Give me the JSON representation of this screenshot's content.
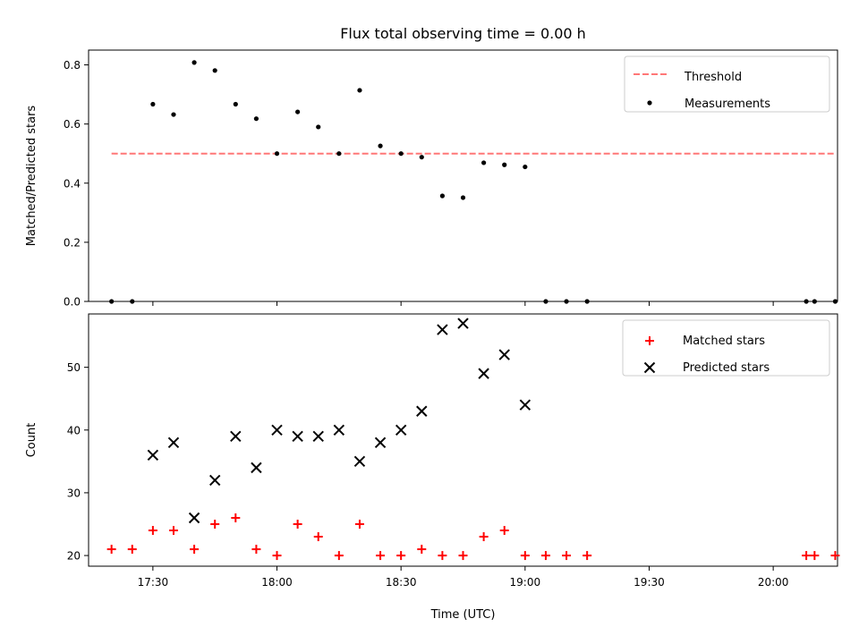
{
  "chart_data": [
    {
      "type": "scatter",
      "title": "Flux total observing time = 0.00 h",
      "xlabel": "",
      "ylabel": "Matched/Predicted stars",
      "ylim": [
        0,
        0.85
      ],
      "yticks": [
        0.0,
        0.2,
        0.4,
        0.6,
        0.8
      ],
      "ytick_labels": [
        "0.0",
        "0.2",
        "0.4",
        "0.6",
        "0.8"
      ],
      "x_tick_labels_shown": false,
      "grid": false,
      "legend": "upper-right",
      "series": [
        {
          "name": "Threshold",
          "kind": "dashed-line",
          "color": "#ff7777",
          "x": [
            "17:20",
            "20:15"
          ],
          "y": [
            0.5,
            0.5
          ]
        },
        {
          "name": "Measurements",
          "kind": "dot",
          "color": "#000000",
          "x": [
            "17:20",
            "17:25",
            "17:30",
            "17:35",
            "17:40",
            "17:45",
            "17:50",
            "17:55",
            "18:00",
            "18:05",
            "18:10",
            "18:15",
            "18:20",
            "18:25",
            "18:30",
            "18:35",
            "18:40",
            "18:45",
            "18:50",
            "18:55",
            "19:00",
            "19:05",
            "19:10",
            "19:15",
            "20:08",
            "20:10",
            "20:15"
          ],
          "y": [
            0.0,
            0.0,
            0.667,
            0.632,
            0.808,
            0.781,
            0.667,
            0.618,
            0.5,
            0.641,
            0.59,
            0.5,
            0.714,
            0.526,
            0.5,
            0.488,
            0.357,
            0.351,
            0.469,
            0.462,
            0.455,
            0.0,
            0.0,
            0.0,
            0.0,
            0.0,
            0.0
          ]
        }
      ]
    },
    {
      "type": "scatter",
      "title": "",
      "xlabel": "Time (UTC)",
      "ylabel": "Count",
      "ylim": [
        18.3,
        58.5
      ],
      "yticks": [
        20,
        30,
        40,
        50
      ],
      "ytick_labels": [
        "20",
        "30",
        "40",
        "50"
      ],
      "xticks": [
        "17:30",
        "18:00",
        "18:30",
        "19:00",
        "19:30",
        "20:00"
      ],
      "grid": false,
      "legend": "upper-right",
      "series": [
        {
          "name": "Matched stars",
          "marker": "+",
          "color": "#ff0000",
          "x": [
            "17:20",
            "17:25",
            "17:30",
            "17:35",
            "17:40",
            "17:45",
            "17:50",
            "17:55",
            "18:00",
            "18:05",
            "18:10",
            "18:15",
            "18:20",
            "18:25",
            "18:30",
            "18:35",
            "18:40",
            "18:45",
            "18:50",
            "18:55",
            "19:00",
            "19:05",
            "19:10",
            "19:15",
            "20:08",
            "20:10",
            "20:15"
          ],
          "y": [
            21,
            21,
            24,
            24,
            21,
            25,
            26,
            21,
            20,
            25,
            23,
            20,
            25,
            20,
            20,
            21,
            20,
            20,
            23,
            24,
            20,
            20,
            20,
            20,
            20,
            20,
            20
          ]
        },
        {
          "name": "Predicted stars",
          "marker": "x",
          "color": "#000000",
          "x": [
            "17:30",
            "17:35",
            "17:40",
            "17:45",
            "17:50",
            "17:55",
            "18:00",
            "18:05",
            "18:10",
            "18:15",
            "18:20",
            "18:25",
            "18:30",
            "18:35",
            "18:40",
            "18:45",
            "18:50",
            "18:55",
            "19:00"
          ],
          "y": [
            36,
            38,
            26,
            32,
            39,
            34,
            40,
            39,
            39,
            40,
            35,
            38,
            40,
            43,
            56,
            57,
            49,
            52,
            44
          ]
        }
      ]
    }
  ]
}
